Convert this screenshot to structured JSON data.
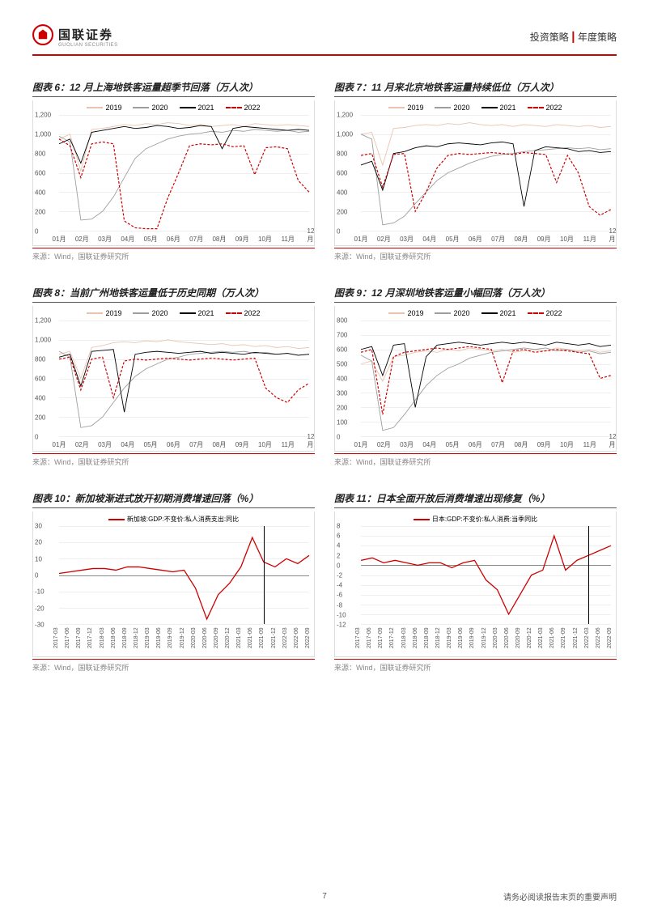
{
  "header": {
    "logo_cn": "国联证券",
    "logo_en": "GUOLIAN SECURITIES",
    "doc_cat": "投资策略",
    "doc_sub": "年度策略"
  },
  "source_label": "来源：Wind，国联证券研究所",
  "footer": {
    "page": "7",
    "disclaimer": "请务必阅读报告末页的重要声明"
  },
  "months": [
    "01月",
    "02月",
    "03月",
    "04月",
    "05月",
    "06月",
    "07月",
    "08月",
    "09月",
    "10月",
    "11月",
    "12月"
  ],
  "quarters": [
    "2017-03",
    "2017-06",
    "2017-09",
    "2017-12",
    "2018-03",
    "2018-06",
    "2018-09",
    "2018-12",
    "2019-03",
    "2019-06",
    "2019-09",
    "2019-12",
    "2020-03",
    "2020-06",
    "2020-09",
    "2020-12",
    "2021-03",
    "2021-06",
    "2021-09",
    "2021-12",
    "2022-03",
    "2022-06",
    "2022-09"
  ],
  "metro_legend": [
    {
      "label": "2019",
      "color": "#e8c4b0",
      "dash": false
    },
    {
      "label": "2020",
      "color": "#9e9e9e",
      "dash": false
    },
    {
      "label": "2021",
      "color": "#000000",
      "dash": false
    },
    {
      "label": "2022",
      "color": "#cc0000",
      "dash": true
    }
  ],
  "charts": {
    "c6": {
      "title": "图表 6：12 月上海地铁客运量超季节回落（万人次）",
      "ylim": [
        0,
        1200
      ],
      "ytick_step": 200,
      "series": {
        "2019": [
          950,
          1000,
          620,
          1050,
          1060,
          1080,
          1100,
          1090,
          1110,
          1100,
          1120,
          1110,
          1090,
          1100,
          1080,
          1090,
          1100,
          1080,
          1110,
          1100,
          1090,
          1100,
          1090,
          1080
        ],
        "2020": [
          980,
          920,
          110,
          120,
          200,
          350,
          550,
          750,
          850,
          900,
          950,
          980,
          1000,
          1010,
          1030,
          1020,
          1040,
          1030,
          1050,
          1040,
          1030,
          1040,
          1020,
          1030
        ],
        "2021": [
          900,
          950,
          700,
          1020,
          1040,
          1060,
          1080,
          1060,
          1070,
          1090,
          1080,
          1060,
          1070,
          1090,
          1080,
          850,
          1060,
          1080,
          1070,
          1060,
          1050,
          1040,
          1050,
          1040
        ],
        "2022": [
          950,
          880,
          550,
          900,
          920,
          900,
          100,
          30,
          20,
          20,
          340,
          600,
          880,
          900,
          890,
          900,
          870,
          880,
          580,
          860,
          870,
          850,
          520,
          400
        ]
      }
    },
    "c7": {
      "title": "图表 7：11 月来北京地铁客运量持续低位（万人次）",
      "ylim": [
        0,
        1200
      ],
      "ytick_step": 200,
      "series": {
        "2019": [
          1000,
          1020,
          680,
          1060,
          1070,
          1090,
          1100,
          1090,
          1110,
          1100,
          1120,
          1100,
          1090,
          1100,
          1080,
          1100,
          1090,
          1080,
          1100,
          1090,
          1080,
          1090,
          1070,
          1080
        ],
        "2020": [
          1000,
          950,
          60,
          80,
          150,
          280,
          400,
          520,
          600,
          650,
          700,
          740,
          770,
          790,
          800,
          820,
          830,
          840,
          850,
          860,
          850,
          860,
          840,
          850
        ],
        "2021": [
          680,
          720,
          420,
          800,
          820,
          860,
          880,
          870,
          900,
          910,
          900,
          890,
          910,
          920,
          900,
          250,
          830,
          870,
          860,
          850,
          820,
          830,
          810,
          820
        ],
        "2022": [
          780,
          800,
          450,
          790,
          800,
          200,
          400,
          650,
          780,
          800,
          790,
          800,
          810,
          800,
          790,
          810,
          800,
          790,
          500,
          780,
          600,
          250,
          160,
          220
        ]
      }
    },
    "c8": {
      "title": "图表 8：当前广州地铁客运量低于历史同期（万人次）",
      "ylim": [
        0,
        1200
      ],
      "ytick_step": 200,
      "series": {
        "2019": [
          850,
          880,
          600,
          920,
          940,
          970,
          980,
          970,
          990,
          980,
          1000,
          980,
          970,
          960,
          950,
          960,
          940,
          950,
          930,
          940,
          920,
          930,
          910,
          920
        ],
        "2020": [
          880,
          820,
          90,
          110,
          200,
          350,
          500,
          620,
          700,
          750,
          800,
          820,
          850,
          860,
          870,
          880,
          870,
          880,
          860,
          870,
          850,
          860,
          840,
          850
        ],
        "2021": [
          820,
          850,
          520,
          880,
          890,
          900,
          250,
          850,
          870,
          880,
          870,
          860,
          870,
          880,
          860,
          870,
          860,
          850,
          870,
          860,
          850,
          860,
          840,
          850
        ],
        "2022": [
          800,
          820,
          480,
          800,
          820,
          400,
          780,
          800,
          790,
          800,
          810,
          800,
          790,
          800,
          810,
          800,
          790,
          800,
          810,
          500,
          400,
          350,
          480,
          550
        ]
      }
    },
    "c9": {
      "title": "图表 9：12 月深圳地铁客运量小幅回落（万人次）",
      "ylim": [
        0,
        800
      ],
      "ytick_step": 100,
      "series": {
        "2019": [
          500,
          520,
          380,
          550,
          560,
          580,
          590,
          580,
          600,
          590,
          610,
          600,
          590,
          600,
          580,
          590,
          600,
          590,
          610,
          600,
          590,
          600,
          580,
          590
        ],
        "2020": [
          560,
          520,
          40,
          60,
          150,
          250,
          350,
          420,
          470,
          500,
          540,
          560,
          580,
          590,
          600,
          610,
          600,
          610,
          590,
          600,
          580,
          590,
          570,
          580
        ],
        "2021": [
          600,
          620,
          420,
          630,
          640,
          200,
          550,
          630,
          640,
          650,
          640,
          630,
          640,
          650,
          640,
          650,
          640,
          630,
          650,
          640,
          630,
          640,
          620,
          630
        ],
        "2022": [
          580,
          600,
          150,
          550,
          580,
          590,
          600,
          610,
          600,
          610,
          620,
          610,
          600,
          370,
          590,
          600,
          580,
          590,
          600,
          590,
          580,
          570,
          400,
          420
        ]
      }
    },
    "c10": {
      "title": "图表 10：新加坡渐进式放开初期消费增速回落（%）",
      "legend_label": "新加坡:GDP:不变价:私人消费支出:同比",
      "legend_color": "#cc0000",
      "ylim": [
        -30,
        30
      ],
      "ytick_step": 10,
      "vline_index": 18,
      "series": [
        1,
        2,
        3,
        4,
        4,
        3,
        5,
        5,
        4,
        3,
        2,
        3,
        -8,
        -27,
        -12,
        -5,
        5,
        23,
        8,
        5,
        10,
        7,
        12
      ]
    },
    "c11": {
      "title": "图表 11：日本全面开放后消费增速出现修复（%）",
      "legend_label": "日本:GDP:不变价:私人消费:当季同比",
      "legend_color": "#cc0000",
      "ylim": [
        -12,
        8
      ],
      "ytick_step": 2,
      "vline_index": 20,
      "series": [
        1,
        1.5,
        0.5,
        1,
        0.5,
        0,
        0.5,
        0.5,
        -0.5,
        0.5,
        1,
        -3,
        -5,
        -10,
        -6,
        -2,
        -1,
        6,
        -1,
        1,
        2,
        3,
        4
      ]
    }
  }
}
